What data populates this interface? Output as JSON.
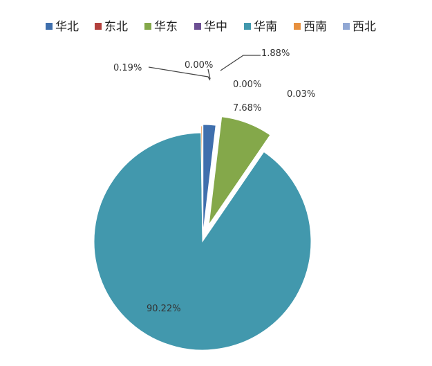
{
  "chart_data": {
    "type": "pie",
    "legend_position": "top",
    "series": [
      {
        "name": "华北",
        "value": 1.88,
        "label": "1.88%",
        "color": "#3f6fad"
      },
      {
        "name": "东北",
        "value": 0.0,
        "label": "0.00%",
        "color": "#b2403c"
      },
      {
        "name": "华东",
        "value": 7.68,
        "label": "7.68%",
        "color": "#84a84a"
      },
      {
        "name": "华中",
        "value": 0.0,
        "label": "0.00%",
        "color": "#6c4f93"
      },
      {
        "name": "华南",
        "value": 90.22,
        "label": "90.22%",
        "color": "#4298ad"
      },
      {
        "name": "西南",
        "value": 0.19,
        "label": "0.19%",
        "color": "#e7903e"
      },
      {
        "name": "西北",
        "value": 0.03,
        "label": "0.03%",
        "color": "#91a8d4"
      }
    ]
  }
}
